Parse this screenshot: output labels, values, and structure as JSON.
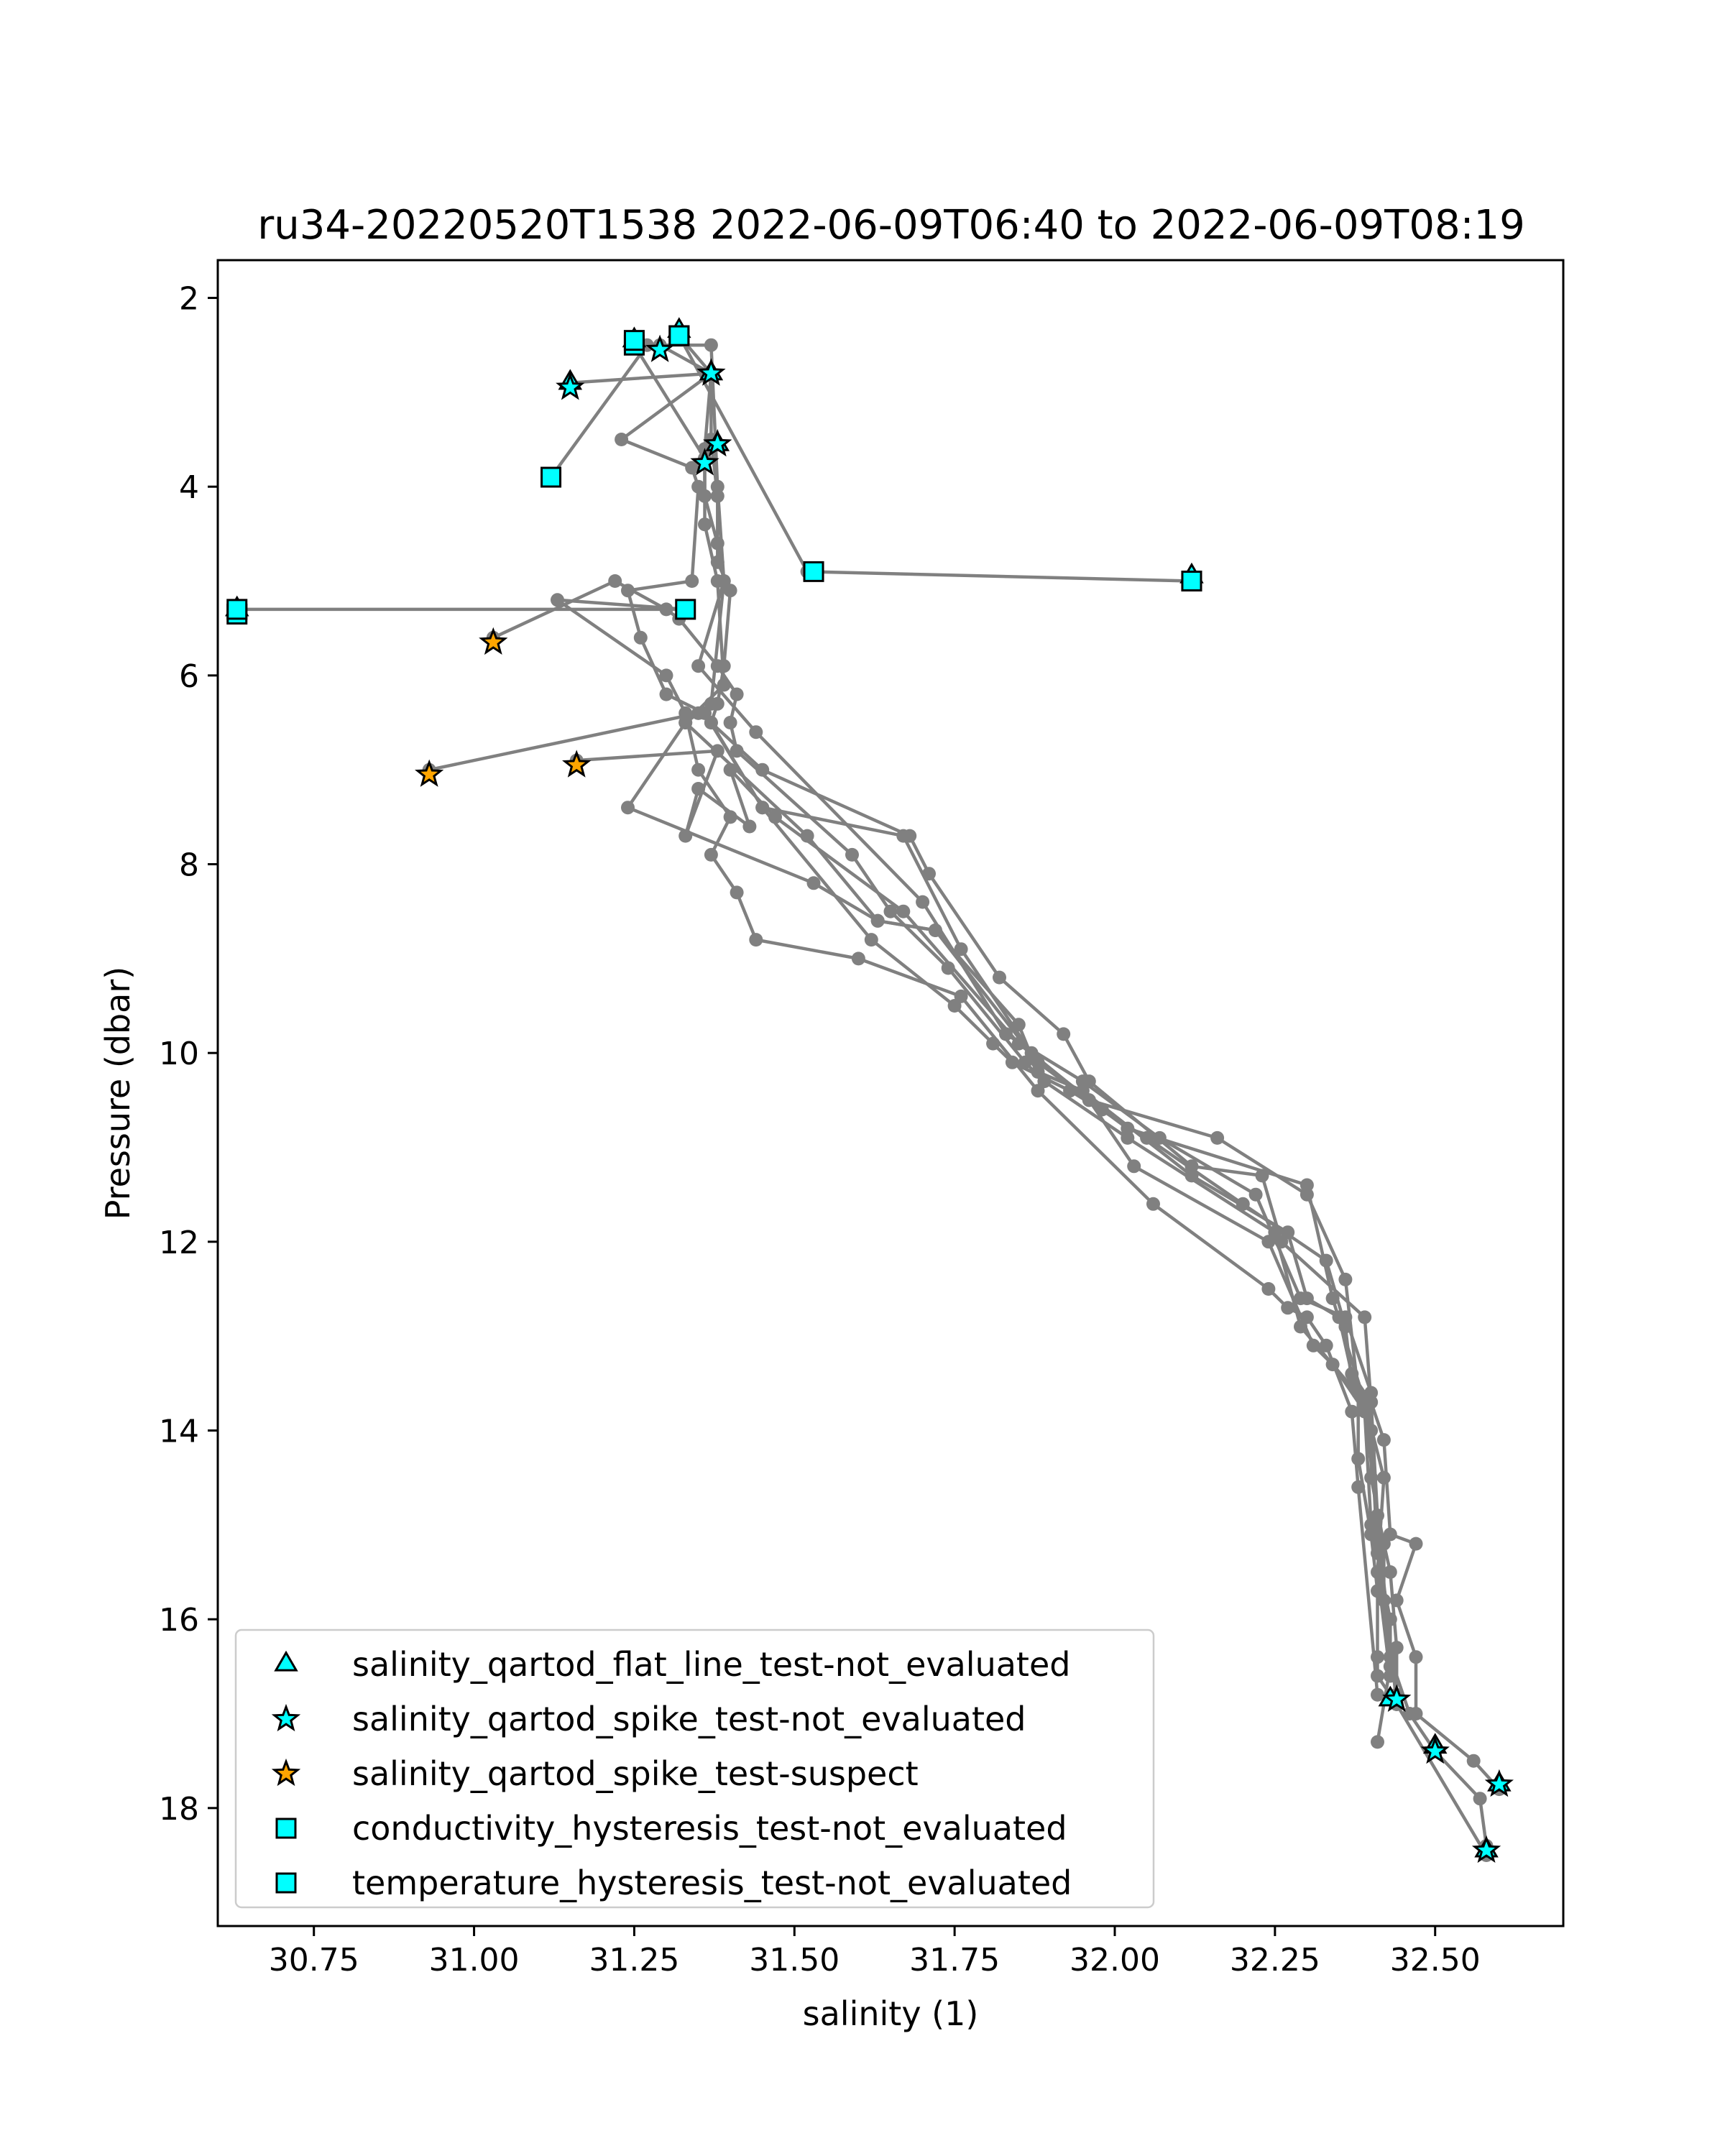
{
  "chart_data": {
    "type": "scatter",
    "title": "ru34-20220520T1538 2022-06-09T06:40 to 2022-06-09T08:19",
    "xlabel": "salinity (1)",
    "ylabel": "Pressure (dbar)",
    "xlim": [
      30.6,
      32.7
    ],
    "ylim": [
      19.25,
      1.6
    ],
    "y_inverted": true,
    "xticks": [
      30.75,
      31.0,
      31.25,
      31.5,
      31.75,
      32.0,
      32.25,
      32.5
    ],
    "xtick_labels": [
      "30.75",
      "31.00",
      "31.25",
      "31.50",
      "31.75",
      "32.00",
      "32.25",
      "32.50"
    ],
    "yticks": [
      2,
      4,
      6,
      8,
      10,
      12,
      14,
      16,
      18
    ],
    "ytick_labels": [
      "2",
      "4",
      "6",
      "8",
      "10",
      "12",
      "14",
      "16",
      "18"
    ],
    "grid": false,
    "legend_position": "lower-left",
    "line_color": "#808080",
    "profiles": [
      {
        "x": [
          31.32,
          31.37,
          31.37,
          31.38,
          31.38,
          31.4,
          31.39,
          31.38,
          31.37,
          31.45,
          31.68,
          31.71,
          31.82,
          31.92,
          31.96,
          32.12,
          32.23,
          32.26,
          32.39,
          32.4,
          32.42,
          32.43,
          32.47,
          32.44,
          32.47,
          32.47,
          32.56,
          32.6
        ],
        "y": [
          2.4,
          2.8,
          3.5,
          4.1,
          4.8,
          5.1,
          5.9,
          6.3,
          6.5,
          7.0,
          7.7,
          8.1,
          9.2,
          9.8,
          10.3,
          11.2,
          11.3,
          12.0,
          12.8,
          13.7,
          14.1,
          15.1,
          15.2,
          15.8,
          16.4,
          17.0,
          17.5,
          17.8
        ]
      },
      {
        "x": [
          31.29,
          31.37,
          31.36,
          31.36,
          31.38,
          31.39,
          31.35,
          31.44,
          31.7,
          31.83,
          31.95,
          32.07,
          32.22,
          32.29,
          32.36,
          32.4,
          32.4,
          32.42,
          32.42,
          32.43,
          32.46,
          32.5,
          32.57,
          32.58
        ],
        "y": [
          2.5,
          2.8,
          3.6,
          4.1,
          4.6,
          5.0,
          5.9,
          6.6,
          8.4,
          9.8,
          10.3,
          10.9,
          11.5,
          12.6,
          12.8,
          13.6,
          14.5,
          15.2,
          15.8,
          16.4,
          17.0,
          17.4,
          17.9,
          18.4
        ]
      },
      {
        "x": [
          31.25,
          31.36,
          31.36,
          31.38,
          31.39,
          31.33,
          31.52,
          31.63,
          31.72,
          31.85,
          31.88,
          31.95,
          32.12,
          32.27,
          32.3,
          32.35,
          32.37,
          32.4,
          32.41,
          32.43,
          32.44,
          32.44,
          32.58
        ],
        "y": [
          2.5,
          3.7,
          4.4,
          5.0,
          6.1,
          6.5,
          7.7,
          8.6,
          8.7,
          9.7,
          10.2,
          10.4,
          11.3,
          11.9,
          12.6,
          12.8,
          13.4,
          13.7,
          14.9,
          15.5,
          16.3,
          16.9,
          18.5
        ]
      },
      {
        "x": [
          31.15,
          31.37,
          31.23,
          31.34,
          31.35,
          31.34,
          31.24,
          31.26,
          31.3,
          31.36,
          31.45,
          31.67,
          31.76,
          31.87,
          31.96,
          32.16,
          32.3,
          32.36,
          32.38,
          32.38,
          32.4,
          32.41,
          32.41,
          32.41,
          32.44
        ],
        "y": [
          2.9,
          2.8,
          3.5,
          3.8,
          4.0,
          5.0,
          5.1,
          5.6,
          6.2,
          6.4,
          7.4,
          7.7,
          8.9,
          10.0,
          10.5,
          10.9,
          11.5,
          12.4,
          13.6,
          14.3,
          15.1,
          15.7,
          16.4,
          16.6,
          16.9
        ]
      },
      {
        "x": [
          31.12,
          31.27,
          31.25,
          31.37,
          31.38,
          31.39,
          31.37,
          31.33,
          31.24,
          31.53,
          31.63,
          31.72,
          31.88,
          31.96,
          32.03,
          32.24,
          32.31,
          32.34,
          32.39,
          32.4,
          32.43,
          32.43,
          32.41
        ],
        "y": [
          3.9,
          2.5,
          2.5,
          2.5,
          4.0,
          5.0,
          6.3,
          6.5,
          7.4,
          8.2,
          8.6,
          8.7,
          10.1,
          10.5,
          11.2,
          12.0,
          13.1,
          13.3,
          13.8,
          15.0,
          16.0,
          16.5,
          17.3
        ]
      },
      {
        "x": [
          30.63,
          31.33,
          31.13,
          31.3,
          31.33,
          31.35,
          31.4,
          31.37,
          31.41,
          31.44,
          31.6,
          31.76,
          31.88,
          32.06,
          32.24,
          32.27,
          32.3,
          32.33,
          32.37,
          32.38,
          32.41
        ],
        "y": [
          5.3,
          5.3,
          5.2,
          6.0,
          6.4,
          7.0,
          7.5,
          7.9,
          8.3,
          8.8,
          9.0,
          9.4,
          10.4,
          11.6,
          12.5,
          12.7,
          12.8,
          13.1,
          13.8,
          14.6,
          16.8
        ]
      },
      {
        "x": [
          31.03,
          31.22,
          31.3,
          31.32,
          31.38,
          31.41,
          31.4,
          31.41,
          31.59,
          31.65,
          31.74,
          31.86,
          31.89,
          32.02,
          32.25,
          32.29,
          32.39,
          32.44
        ],
        "y": [
          5.6,
          5.0,
          5.3,
          5.4,
          5.9,
          6.2,
          6.5,
          6.8,
          7.9,
          8.5,
          9.1,
          10.1,
          10.3,
          10.9,
          11.9,
          12.9,
          13.7,
          16.9
        ]
      },
      {
        "x": [
          31.16,
          31.38,
          31.33,
          31.35,
          31.43,
          31.4,
          31.47,
          31.67,
          31.85,
          31.98,
          32.02,
          32.3,
          32.34,
          32.39,
          32.42,
          32.41,
          32.43
        ],
        "y": [
          6.9,
          6.8,
          7.7,
          7.2,
          7.6,
          7.0,
          7.5,
          8.5,
          9.9,
          10.6,
          10.8,
          11.4,
          12.6,
          13.7,
          14.5,
          15.5,
          16.6
        ]
      },
      {
        "x": [
          30.93,
          31.35,
          31.37,
          31.45,
          31.62,
          31.75,
          31.81,
          31.84,
          31.93,
          32.05,
          32.2,
          32.33,
          32.36,
          32.37,
          32.4,
          32.41,
          32.44
        ],
        "y": [
          7.0,
          6.4,
          6.5,
          7.4,
          8.8,
          9.5,
          9.9,
          10.1,
          10.4,
          10.9,
          11.6,
          12.2,
          12.9,
          13.5,
          14.0,
          15.3,
          16.8
        ]
      },
      {
        "x": [
          31.32,
          31.52,
          32.12
        ],
        "y": [
          2.4,
          4.9,
          5.0
        ]
      }
    ],
    "series": [
      {
        "name": "salinity_qartod_flat_line_test-not_evaluated",
        "marker": "triangle",
        "color": "#00ffff",
        "x": [
          31.32,
          31.25,
          31.37,
          31.38,
          31.15,
          32.12,
          30.63,
          32.43,
          32.5,
          32.58,
          32.6
        ],
        "y": [
          2.35,
          2.45,
          2.8,
          3.55,
          2.9,
          4.95,
          5.3,
          16.85,
          17.35,
          18.45,
          17.75
        ]
      },
      {
        "name": "salinity_qartod_spike_test-not_evaluated",
        "marker": "star",
        "color": "#00ffff",
        "x": [
          31.29,
          31.37,
          31.15,
          31.38,
          31.36,
          32.44,
          32.5,
          32.6,
          32.58
        ],
        "y": [
          2.55,
          2.8,
          2.95,
          3.55,
          3.75,
          16.85,
          17.4,
          17.75,
          18.45
        ]
      },
      {
        "name": "salinity_qartod_spike_test-suspect",
        "marker": "star",
        "color": "#ffa500",
        "x": [
          31.03,
          31.16,
          30.93
        ],
        "y": [
          5.65,
          6.95,
          7.05
        ]
      },
      {
        "name": "conductivity_hysteresis_test-not_evaluated",
        "marker": "square",
        "color": "#00ffff",
        "x": [
          31.25,
          31.32,
          31.12,
          31.53,
          32.12,
          30.63,
          31.33
        ],
        "y": [
          2.5,
          2.4,
          3.9,
          4.9,
          5.0,
          5.35,
          5.3
        ]
      },
      {
        "name": "temperature_hysteresis_test-not_evaluated",
        "marker": "square",
        "color": "#00ffff",
        "x": [
          31.25,
          31.32,
          32.12,
          30.63
        ],
        "y": [
          2.45,
          2.4,
          5.0,
          5.3
        ]
      }
    ]
  }
}
